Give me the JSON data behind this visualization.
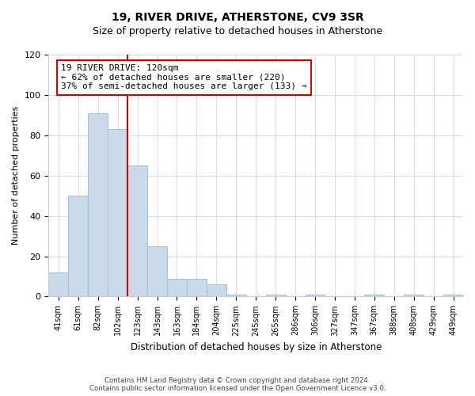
{
  "title": "19, RIVER DRIVE, ATHERSTONE, CV9 3SR",
  "subtitle": "Size of property relative to detached houses in Atherstone",
  "xlabel": "Distribution of detached houses by size in Atherstone",
  "ylabel": "Number of detached properties",
  "bar_labels": [
    "41sqm",
    "61sqm",
    "82sqm",
    "102sqm",
    "123sqm",
    "143sqm",
    "163sqm",
    "184sqm",
    "204sqm",
    "225sqm",
    "245sqm",
    "265sqm",
    "286sqm",
    "306sqm",
    "327sqm",
    "347sqm",
    "367sqm",
    "388sqm",
    "408sqm",
    "429sqm",
    "449sqm"
  ],
  "bar_heights": [
    12,
    50,
    91,
    83,
    65,
    25,
    9,
    9,
    6,
    1,
    0,
    1,
    0,
    1,
    0,
    0,
    1,
    0,
    1,
    0,
    1
  ],
  "bar_color": "#c9daea",
  "bar_edge_color": "#a8c0d6",
  "vline_x_idx": 3,
  "vline_color": "#cc0000",
  "annotation_line1": "19 RIVER DRIVE: 120sqm",
  "annotation_line2": "← 62% of detached houses are smaller (220)",
  "annotation_line3": "37% of semi-detached houses are larger (133) →",
  "annotation_box_color": "#ffffff",
  "annotation_box_edge": "#cc0000",
  "ylim": [
    0,
    120
  ],
  "yticks": [
    0,
    20,
    40,
    60,
    80,
    100,
    120
  ],
  "footer": "Contains HM Land Registry data © Crown copyright and database right 2024.\nContains public sector information licensed under the Open Government Licence v3.0.",
  "background_color": "#ffffff",
  "grid_color": "#d0dcea"
}
